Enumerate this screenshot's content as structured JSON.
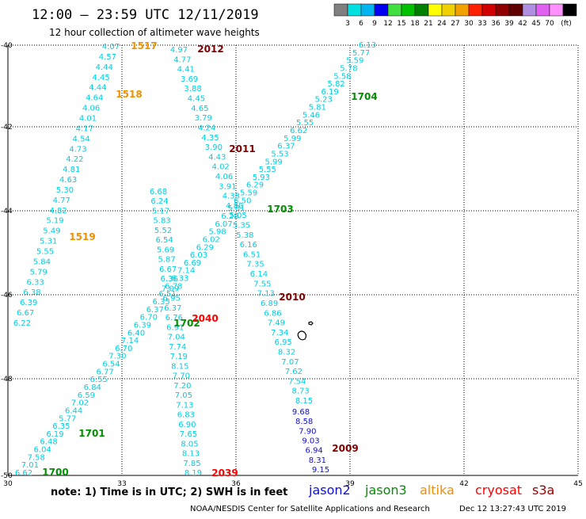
{
  "header": {
    "title": "12:00 – 23:59 UTC 12/11/2019",
    "subtitle": "12 hour collection of altimeter wave heights"
  },
  "colorbar": {
    "colors": [
      "#808080",
      "#00e0e0",
      "#00b4f0",
      "#0000f0",
      "#40e040",
      "#00c000",
      "#008000",
      "#ffff00",
      "#f0d000",
      "#f0a000",
      "#ff2000",
      "#d00000",
      "#900000",
      "#600000",
      "#b090e0",
      "#e060f0",
      "#ff90ff",
      "#000000"
    ],
    "ticks": [
      "3",
      "6",
      "9",
      "12",
      "15",
      "18",
      "21",
      "24",
      "27",
      "30",
      "33",
      "36",
      "39",
      "42",
      "45",
      "70",
      "(ft)"
    ]
  },
  "axes": {
    "lon_labels": [
      "30",
      "33",
      "36",
      "39",
      "42",
      "45"
    ],
    "lat_labels": [
      "-40",
      "-42",
      "-44",
      "-46",
      "-48",
      "-50"
    ]
  },
  "note": "note:  1) Time is in UTC;  2) SWH is in feet",
  "legend": [
    {
      "name": "jason2",
      "color": "#1010d0"
    },
    {
      "name": "jason3",
      "color": "#009000"
    },
    {
      "name": "altika",
      "color": "#f09000"
    },
    {
      "name": "cryosat",
      "color": "#ff0000"
    },
    {
      "name": "s3a",
      "color": "#a00000"
    }
  ],
  "footer": {
    "credit": "NOAA/NESDIS Center for Satellite Applications and Research",
    "timestamp": "Dec 12 13:27:43 UTC 2019"
  },
  "passes": [
    {
      "label": "1517",
      "color": "#f09000"
    },
    {
      "label": "1518",
      "color": "#f09000"
    },
    {
      "label": "1519",
      "color": "#f09000"
    },
    {
      "label": "2012",
      "color": "#800000"
    },
    {
      "label": "2011",
      "color": "#800000"
    },
    {
      "label": "2010",
      "color": "#800000"
    },
    {
      "label": "2009",
      "color": "#800000"
    },
    {
      "label": "1704",
      "color": "#009000"
    },
    {
      "label": "1703",
      "color": "#009000"
    },
    {
      "label": "1702",
      "color": "#009000"
    },
    {
      "label": "1701",
      "color": "#009000"
    },
    {
      "label": "1700",
      "color": "#009000"
    },
    {
      "label": "2040",
      "color": "#ff0000"
    },
    {
      "label": "2039",
      "color": "#ff0000"
    }
  ],
  "tracks": {
    "altika_1517": [
      "4.07",
      "4.57",
      "4.44",
      "4.45",
      "4.44",
      "4.64",
      "4.06",
      "4.01",
      "4.17",
      "4.54",
      "4.73",
      "4.22",
      "4.81",
      "4.63",
      "5.30",
      "4.77",
      "4.82",
      "5.19",
      "5.49",
      "5.31",
      "5.55",
      "5.84",
      "5.79",
      "6.33",
      "6.38",
      "6.39",
      "6.67",
      "6.22"
    ],
    "s3a_2012": [
      "4.97",
      "4.77",
      "4.41",
      "3.69",
      "3.88",
      "4.45",
      "4.65",
      "3.79",
      "4.24",
      "4.35",
      "3.90",
      "4.43",
      "4.02",
      "4.06",
      "3.91",
      "4.38",
      "4.80",
      "5.05",
      "5.35",
      "5.38",
      "6.16",
      "6.51",
      "7.35",
      "6.14",
      "7.55",
      "7.13",
      "6.89",
      "6.86",
      "7.49",
      "7.34",
      "6.95",
      "8.32",
      "7.07",
      "7.62",
      "7.54",
      "8.73",
      "8.15"
    ],
    "jason2_2009": [
      "9.68",
      "8.58",
      "7.90",
      "9.03",
      "6.94",
      "8.31",
      "9.15"
    ],
    "jason3_1704": [
      "6.13",
      "5.77",
      "5.59",
      "5.78",
      "5.58",
      "5.82",
      "6.19",
      "5.23",
      "5.81",
      "5.46",
      "5.55",
      "6.62",
      "5.99",
      "6.37",
      "5.53",
      "5.99",
      "5.55",
      "5.93",
      "6.29",
      "5.59",
      "6.50",
      "5.81",
      "6.28",
      "6.07",
      "5.98",
      "6.02",
      "6.29",
      "6.03",
      "6.69",
      "7.14",
      "6.33",
      "6.78",
      "6.51",
      "6.35",
      "6.37",
      "6.70",
      "6.39",
      "6.40",
      "7.14",
      "6.70",
      "7.30",
      "6.54",
      "6.77",
      "6.55",
      "6.84",
      "6.59",
      "7.02",
      "6.44",
      "5.77",
      "6.35",
      "6.19",
      "6.48",
      "6.04",
      "7.58",
      "7.01",
      "6.62"
    ],
    "cryosat_2040": [
      "6.68",
      "6.24",
      "5.17",
      "5.83",
      "5.52",
      "6.54",
      "5.69",
      "5.87",
      "6.67",
      "6.36",
      "7.09",
      "6.95",
      "6.37",
      "6.76",
      "6.91",
      "7.04",
      "7.74",
      "7.19",
      "8.15",
      "7.70",
      "7.20",
      "7.05",
      "7.13",
      "6.83",
      "6.90",
      "7.65",
      "8.05",
      "8.13",
      "7.85",
      "8.19"
    ]
  }
}
